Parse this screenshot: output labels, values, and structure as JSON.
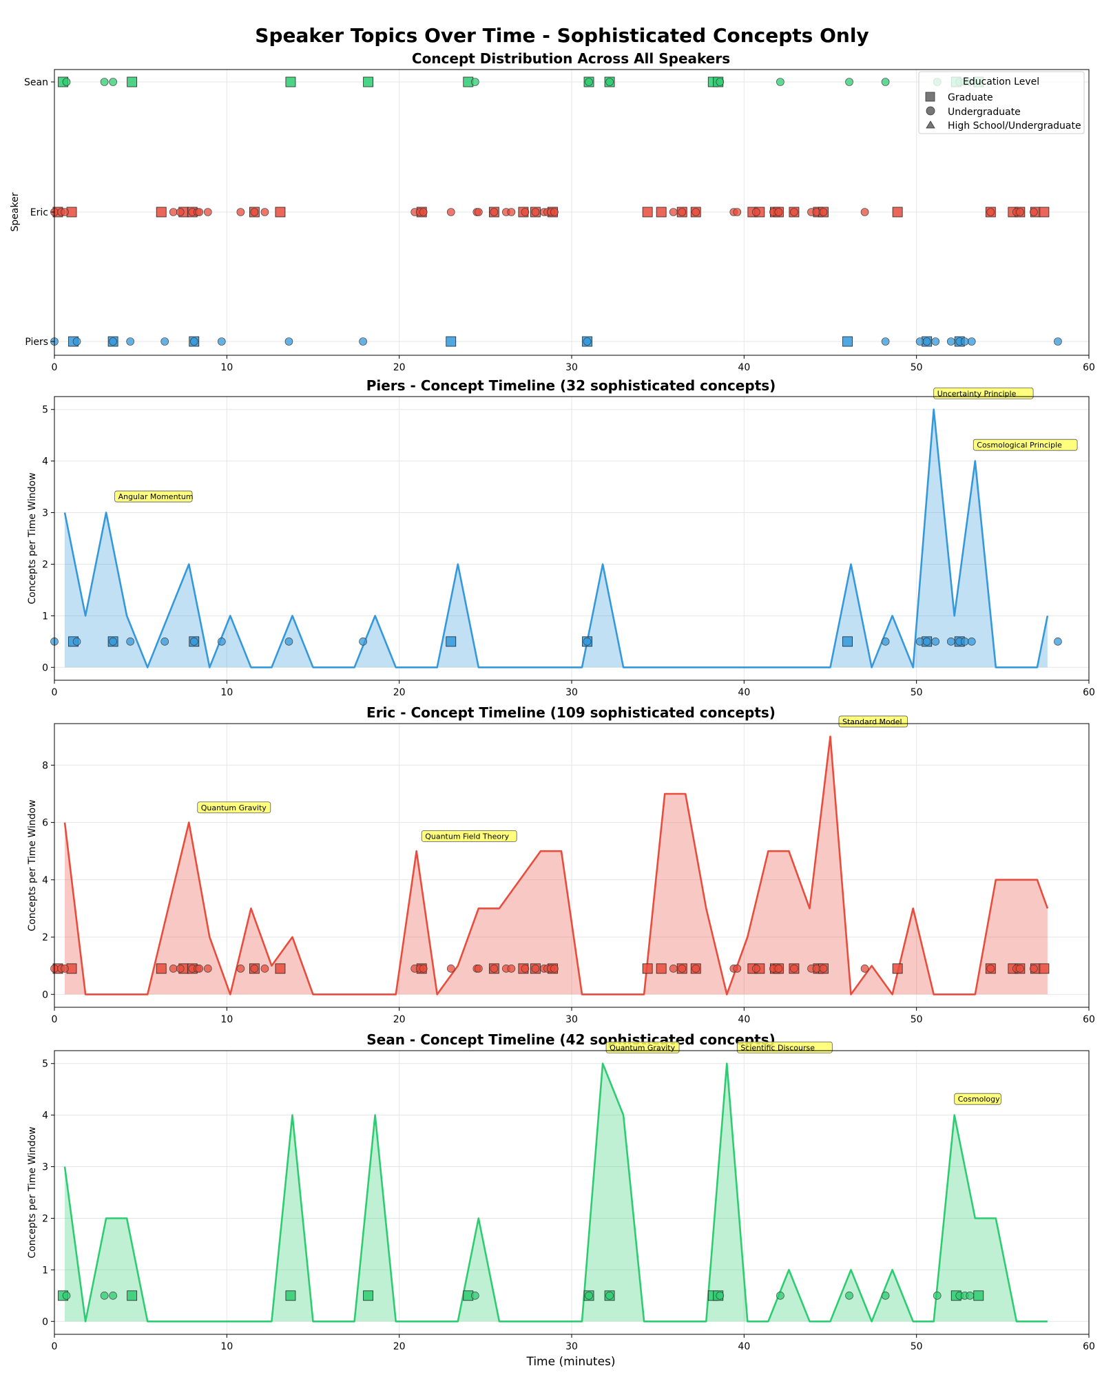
{
  "chart_data": {
    "title": "Speaker Topics Over Time - Sophisticated Concepts Only",
    "xlabel": "Time (minutes)",
    "xlim": [
      0,
      60
    ],
    "xticks": [
      0,
      10,
      20,
      30,
      40,
      50,
      60
    ],
    "colors": {
      "Piers": "#3498db",
      "Eric": "#e74c3c",
      "Sean": "#2ecc71"
    },
    "overview": {
      "type": "scatter",
      "title": "Concept Distribution Across All Speakers",
      "ylabel": "Speaker",
      "speakers": [
        "Piers",
        "Eric",
        "Sean"
      ],
      "legend": {
        "title": "Education Level",
        "entries": [
          "Graduate",
          "Undergraduate",
          "High School/Undergraduate"
        ],
        "markers": [
          "square",
          "circle",
          "triangle"
        ],
        "position": "top-right"
      }
    },
    "points": {
      "Piers": {
        "squares": [
          1.1,
          3.4,
          8.1,
          23.0,
          30.9,
          46.0,
          50.6,
          52.5
        ],
        "circles": [
          0.0,
          1.3,
          3.4,
          4.4,
          6.4,
          8.1,
          9.7,
          13.6,
          17.9,
          30.9,
          48.2,
          50.2,
          50.6,
          51.1,
          52.0,
          52.5,
          52.8,
          53.2,
          58.2
        ]
      },
      "Eric": {
        "squares": [
          0.2,
          1.0,
          6.2,
          7.5,
          8.0,
          11.6,
          13.1,
          21.3,
          25.5,
          27.2,
          27.9,
          28.9,
          34.4,
          35.2,
          36.4,
          37.2,
          40.5,
          40.9,
          41.8,
          42.0,
          42.9,
          44.3,
          44.6,
          48.9,
          54.3,
          55.6,
          56.0,
          56.9,
          57.4
        ],
        "circles": [
          0.0,
          0.4,
          0.6,
          6.9,
          7.3,
          8.0,
          8.3,
          8.4,
          8.9,
          10.8,
          11.6,
          12.2,
          20.9,
          21.2,
          21.4,
          23.0,
          24.5,
          24.6,
          25.5,
          26.2,
          26.5,
          27.3,
          27.9,
          28.4,
          28.6,
          28.8,
          29.0,
          35.9,
          36.4,
          37.2,
          39.4,
          39.6,
          40.7,
          41.7,
          42.0,
          42.9,
          43.9,
          44.2,
          44.6,
          47.0,
          54.3,
          55.8,
          56.0,
          56.8
        ]
      },
      "Sean": {
        "squares": [
          0.5,
          4.5,
          13.7,
          18.2,
          24.0,
          31.0,
          32.2,
          38.2,
          38.5,
          52.3,
          53.6
        ],
        "circles": [
          0.7,
          2.9,
          3.4,
          24.4,
          31.0,
          32.2,
          38.6,
          42.1,
          46.1,
          48.2,
          51.2,
          52.5,
          52.8,
          53.1
        ]
      }
    },
    "panels": [
      {
        "speaker": "Piers",
        "type": "area",
        "title": "Piers - Concept Timeline (32 sophisticated concepts)",
        "ylabel": "Concepts per Time Window",
        "ylim": [
          -0.25,
          5.25
        ],
        "yticks": [
          0,
          1,
          2,
          3,
          4,
          5
        ],
        "marker_y": 0.5,
        "x": [
          0.6,
          1.8,
          3.0,
          4.2,
          5.4,
          6.6,
          7.8,
          9.0,
          10.2,
          11.4,
          12.6,
          13.8,
          15.0,
          16.2,
          17.4,
          18.6,
          19.8,
          21.0,
          22.2,
          23.4,
          24.6,
          25.8,
          27.0,
          28.2,
          29.4,
          30.6,
          31.8,
          33.0,
          34.2,
          35.4,
          36.6,
          37.8,
          39.0,
          40.2,
          41.4,
          42.6,
          43.8,
          45.0,
          46.2,
          47.4,
          48.6,
          49.8,
          51.0,
          52.2,
          53.4,
          54.6,
          55.8,
          57.0,
          57.6
        ],
        "y": [
          3,
          1,
          3,
          1,
          0,
          1,
          2,
          0,
          1,
          0,
          0,
          1,
          0,
          0,
          0,
          1,
          0,
          0,
          0,
          2,
          0,
          0,
          0,
          0,
          0,
          0,
          2,
          0,
          0,
          0,
          0,
          0,
          0,
          0,
          0,
          0,
          0,
          0,
          2,
          0,
          1,
          0,
          5,
          1,
          4,
          0,
          0,
          0,
          1
        ],
        "annotations": [
          {
            "label": "Angular Momentum",
            "x": 3.5,
            "y": 3.3
          },
          {
            "label": "Uncertainty Principle",
            "x": 51.0,
            "y": 5.3
          },
          {
            "label": "Cosmological Principle",
            "x": 53.3,
            "y": 4.3
          }
        ]
      },
      {
        "speaker": "Eric",
        "type": "area",
        "title": "Eric - Concept Timeline (109 sophisticated concepts)",
        "ylabel": "Concepts per Time Window",
        "ylim": [
          -0.45,
          9.45
        ],
        "yticks": [
          0,
          2,
          4,
          6,
          8
        ],
        "marker_y": 0.9,
        "x": [
          0.6,
          1.8,
          3.0,
          4.2,
          5.4,
          6.6,
          7.8,
          9.0,
          10.2,
          11.4,
          12.6,
          13.8,
          15.0,
          16.2,
          17.4,
          18.6,
          19.8,
          21.0,
          22.2,
          23.4,
          24.6,
          25.8,
          27.0,
          28.2,
          29.4,
          30.6,
          31.8,
          33.0,
          34.2,
          35.4,
          36.6,
          37.8,
          39.0,
          40.2,
          41.4,
          42.6,
          43.8,
          45.0,
          46.2,
          47.4,
          48.6,
          49.8,
          51.0,
          52.2,
          53.4,
          54.6,
          55.8,
          57.0,
          57.6
        ],
        "y": [
          6,
          0,
          0,
          0,
          0,
          3,
          6,
          2,
          0,
          3,
          1,
          2,
          0,
          0,
          0,
          0,
          0,
          5,
          0,
          1,
          3,
          3,
          4,
          5,
          5,
          0,
          0,
          0,
          0,
          7,
          7,
          3,
          0,
          2,
          5,
          5,
          3,
          9,
          0,
          1,
          0,
          3,
          0,
          0,
          0,
          4,
          4,
          4,
          3
        ],
        "annotations": [
          {
            "label": "Quantum Gravity",
            "x": 8.3,
            "y": 6.5
          },
          {
            "label": "Quantum Field Theory",
            "x": 21.3,
            "y": 5.5
          },
          {
            "label": "Standard Model",
            "x": 45.5,
            "y": 9.5
          }
        ]
      },
      {
        "speaker": "Sean",
        "type": "area",
        "title": "Sean - Concept Timeline (42 sophisticated concepts)",
        "ylabel": "Concepts per Time Window",
        "xlabel": "Time (minutes)",
        "ylim": [
          -0.25,
          5.25
        ],
        "yticks": [
          0,
          1,
          2,
          3,
          4,
          5
        ],
        "marker_y": 0.5,
        "x": [
          0.6,
          1.8,
          3.0,
          4.2,
          5.4,
          6.6,
          7.8,
          9.0,
          10.2,
          11.4,
          12.6,
          13.8,
          15.0,
          16.2,
          17.4,
          18.6,
          19.8,
          21.0,
          22.2,
          23.4,
          24.6,
          25.8,
          27.0,
          28.2,
          29.4,
          30.6,
          31.8,
          33.0,
          34.2,
          35.4,
          36.6,
          37.8,
          39.0,
          40.2,
          41.4,
          42.6,
          43.8,
          45.0,
          46.2,
          47.4,
          48.6,
          49.8,
          51.0,
          52.2,
          53.4,
          54.6,
          55.8,
          57.0,
          57.6
        ],
        "y": [
          3,
          0,
          2,
          2,
          0,
          0,
          0,
          0,
          0,
          0,
          0,
          4,
          0,
          0,
          0,
          4,
          0,
          0,
          0,
          0,
          2,
          0,
          0,
          0,
          0,
          0,
          5,
          4,
          0,
          0,
          0,
          0,
          5,
          0,
          0,
          1,
          0,
          0,
          1,
          0,
          1,
          0,
          0,
          4,
          2,
          2,
          0,
          0,
          0
        ],
        "annotations": [
          {
            "label": "Quantum Gravity",
            "x": 32.0,
            "y": 5.3
          },
          {
            "label": "Scientific Discourse",
            "x": 39.6,
            "y": 5.3
          },
          {
            "label": "Cosmology",
            "x": 52.2,
            "y": 4.3
          }
        ]
      }
    ]
  }
}
